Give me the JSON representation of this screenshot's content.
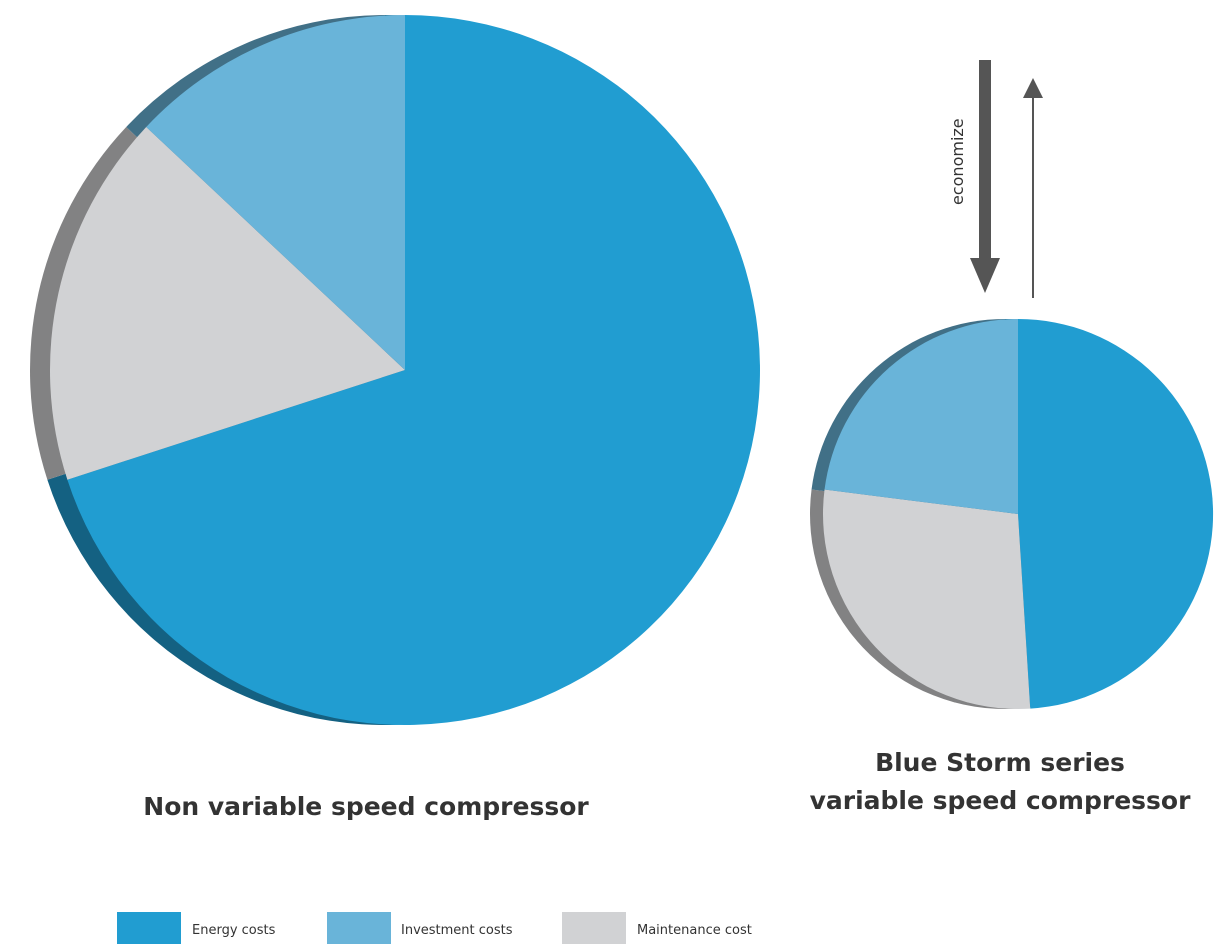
{
  "chart_data": [
    {
      "type": "pie",
      "title": "Non variable speed compressor",
      "categories": [
        "Energy costs",
        "Investment costs",
        "Maintenance cost"
      ],
      "values": [
        70,
        13,
        17
      ],
      "colors": [
        "#219dd1",
        "#69b4d9",
        "#d1d2d4"
      ]
    },
    {
      "type": "pie",
      "title_lines": [
        "Blue Storm series",
        "variable speed compressor"
      ],
      "categories": [
        "Energy costs",
        "Investment costs",
        "Maintenance cost"
      ],
      "values": [
        49,
        23,
        28
      ],
      "colors": [
        "#219dd1",
        "#69b4d9",
        "#d1d2d4"
      ]
    }
  ],
  "annotation": {
    "arrow_label": "economize"
  },
  "legend": {
    "items": [
      {
        "label": "Energy costs",
        "color": "#219dd1"
      },
      {
        "label": "Investment costs",
        "color": "#69b4d9"
      },
      {
        "label": "Maintenance cost",
        "color": "#d1d2d4"
      }
    ]
  }
}
